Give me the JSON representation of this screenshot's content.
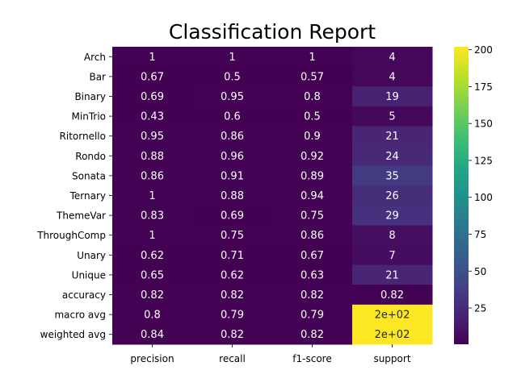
{
  "chart_data": {
    "type": "heatmap",
    "title": "Classification Report",
    "rows": [
      "Arch",
      "Bar",
      "Binary",
      "MinTrio",
      "Ritornello",
      "Rondo",
      "Sonata",
      "Ternary",
      "ThemeVar",
      "ThroughComp",
      "Unary",
      "Unique",
      "accuracy",
      "macro avg",
      "weighted avg"
    ],
    "columns": [
      "precision",
      "recall",
      "f1-score",
      "support"
    ],
    "values": [
      [
        1,
        1,
        1,
        4
      ],
      [
        0.67,
        0.5,
        0.57,
        4
      ],
      [
        0.69,
        0.95,
        0.8,
        19
      ],
      [
        0.43,
        0.6,
        0.5,
        5
      ],
      [
        0.95,
        0.86,
        0.9,
        21
      ],
      [
        0.88,
        0.96,
        0.92,
        24
      ],
      [
        0.86,
        0.91,
        0.89,
        35
      ],
      [
        1,
        0.88,
        0.94,
        26
      ],
      [
        0.83,
        0.69,
        0.75,
        29
      ],
      [
        1,
        0.75,
        0.86,
        8
      ],
      [
        0.62,
        0.71,
        0.67,
        7
      ],
      [
        0.65,
        0.62,
        0.63,
        21
      ],
      [
        0.82,
        0.82,
        0.82,
        0.82
      ],
      [
        0.8,
        0.79,
        0.79,
        202
      ],
      [
        0.84,
        0.82,
        0.82,
        202
      ]
    ],
    "annotations": [
      [
        "1",
        "1",
        "1",
        "4"
      ],
      [
        "0.67",
        "0.5",
        "0.57",
        "4"
      ],
      [
        "0.69",
        "0.95",
        "0.8",
        "19"
      ],
      [
        "0.43",
        "0.6",
        "0.5",
        "5"
      ],
      [
        "0.95",
        "0.86",
        "0.9",
        "21"
      ],
      [
        "0.88",
        "0.96",
        "0.92",
        "24"
      ],
      [
        "0.86",
        "0.91",
        "0.89",
        "35"
      ],
      [
        "1",
        "0.88",
        "0.94",
        "26"
      ],
      [
        "0.83",
        "0.69",
        "0.75",
        "29"
      ],
      [
        "1",
        "0.75",
        "0.86",
        "8"
      ],
      [
        "0.62",
        "0.71",
        "0.67",
        "7"
      ],
      [
        "0.65",
        "0.62",
        "0.63",
        "21"
      ],
      [
        "0.82",
        "0.82",
        "0.82",
        "0.82"
      ],
      [
        "0.8",
        "0.79",
        "0.79",
        "2e+02"
      ],
      [
        "0.84",
        "0.82",
        "0.82",
        "2e+02"
      ]
    ],
    "colormap": "viridis",
    "color_range": [
      0.43,
      202
    ],
    "colorbar_ticks": [
      25,
      50,
      75,
      100,
      125,
      150,
      175,
      200
    ],
    "colorbar_tick_labels": [
      "25",
      "50",
      "75",
      "100",
      "125",
      "150",
      "175",
      "200"
    ]
  }
}
